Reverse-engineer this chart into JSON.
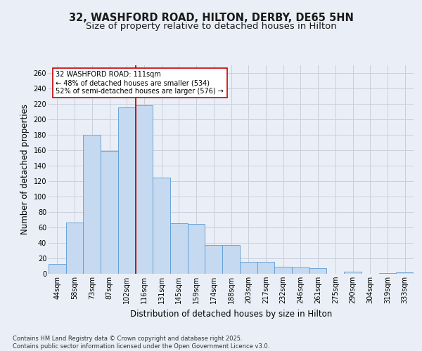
{
  "title": "32, WASHFORD ROAD, HILTON, DERBY, DE65 5HN",
  "subtitle": "Size of property relative to detached houses in Hilton",
  "xlabel": "Distribution of detached houses by size in Hilton",
  "ylabel": "Number of detached properties",
  "categories": [
    "44sqm",
    "58sqm",
    "73sqm",
    "87sqm",
    "102sqm",
    "116sqm",
    "131sqm",
    "145sqm",
    "159sqm",
    "174sqm",
    "188sqm",
    "203sqm",
    "217sqm",
    "232sqm",
    "246sqm",
    "261sqm",
    "275sqm",
    "290sqm",
    "304sqm",
    "319sqm",
    "333sqm"
  ],
  "values": [
    13,
    66,
    180,
    159,
    215,
    218,
    124,
    65,
    64,
    37,
    37,
    15,
    15,
    9,
    8,
    7,
    0,
    3,
    0,
    1,
    2
  ],
  "bar_color": "#c5d9f0",
  "bar_edge_color": "#5b9bd5",
  "grid_color": "#c8d0dc",
  "background_color": "#eaeff7",
  "vline_color": "#cc0000",
  "vline_x": 4.5,
  "annotation_text": "32 WASHFORD ROAD: 111sqm\n← 48% of detached houses are smaller (534)\n52% of semi-detached houses are larger (576) →",
  "annotation_box_facecolor": "#ffffff",
  "annotation_box_edgecolor": "#cc0000",
  "ylim": [
    0,
    270
  ],
  "yticks": [
    0,
    20,
    40,
    60,
    80,
    100,
    120,
    140,
    160,
    180,
    200,
    220,
    240,
    260
  ],
  "footer": "Contains HM Land Registry data © Crown copyright and database right 2025.\nContains public sector information licensed under the Open Government Licence v3.0.",
  "title_fontsize": 10.5,
  "subtitle_fontsize": 9.5,
  "axis_label_fontsize": 8.5,
  "tick_fontsize": 7,
  "annotation_fontsize": 7,
  "footer_fontsize": 6
}
